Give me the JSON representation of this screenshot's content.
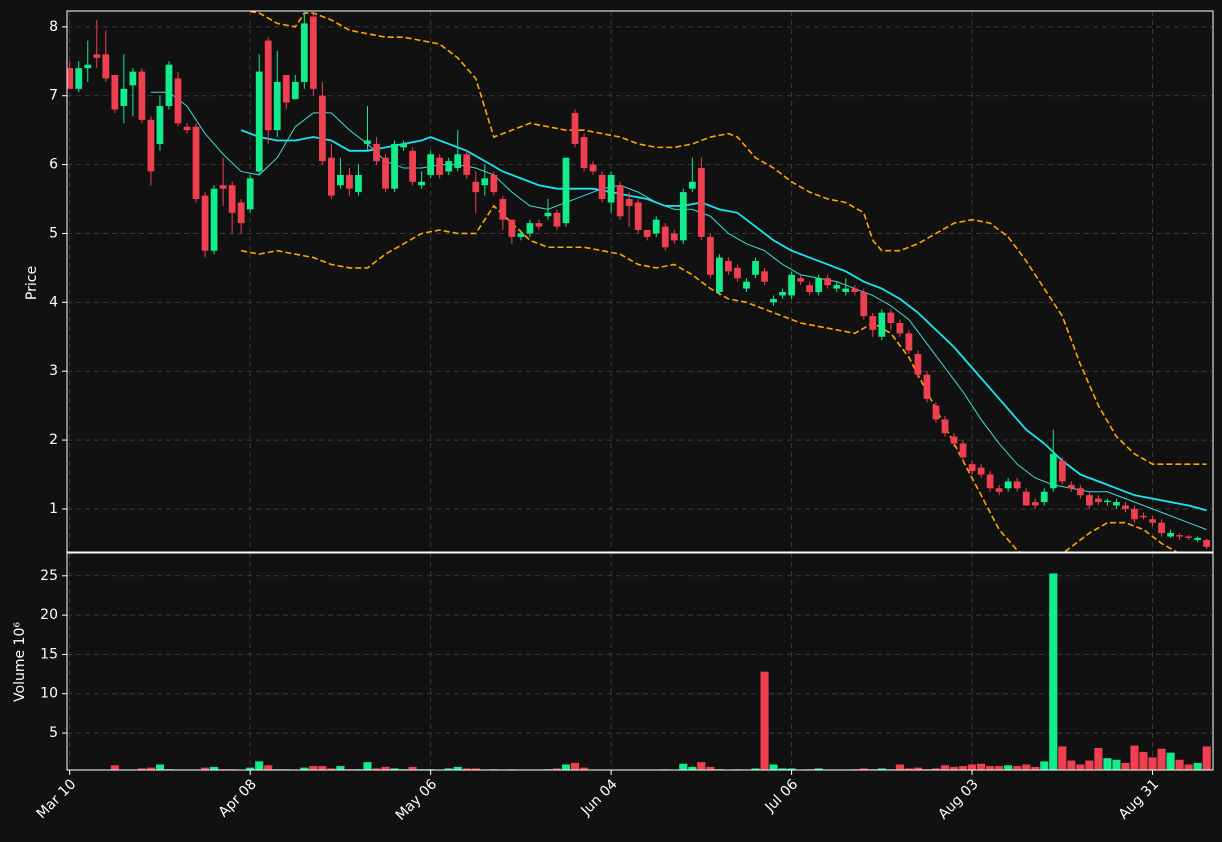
{
  "chart_data": {
    "type": "candlestick",
    "ylabel": "Price",
    "volume_label": "Volume  10⁶",
    "up_color": "#12ec8c",
    "down_color": "#ee4050",
    "grid": true,
    "xlim": [
      -0.3,
      126.7
    ],
    "xticks": [
      {
        "value": 0,
        "label": "Mar 10"
      },
      {
        "value": 20,
        "label": "Apr 08"
      },
      {
        "value": 40,
        "label": "May 06"
      },
      {
        "value": 60,
        "label": "Jun 04"
      },
      {
        "value": 80,
        "label": "Jul 06"
      },
      {
        "value": 100,
        "label": "Aug 03"
      },
      {
        "value": 120,
        "label": "Aug 31"
      }
    ],
    "ylim": [
      0.375,
      8.23
    ],
    "yticks": [
      1,
      2,
      3,
      4,
      5,
      6,
      7,
      8
    ],
    "volume_ylim": [
      0.3,
      27.9
    ],
    "volume_yticks": [
      5,
      10,
      15,
      20,
      25
    ],
    "x": [
      0,
      1,
      2,
      3,
      4,
      5,
      6,
      7,
      8,
      9,
      10,
      11,
      12,
      13,
      14,
      15,
      16,
      17,
      18,
      19,
      20,
      21,
      22,
      23,
      24,
      25,
      26,
      27,
      28,
      29,
      30,
      31,
      32,
      33,
      34,
      35,
      36,
      37,
      38,
      39,
      40,
      41,
      42,
      43,
      44,
      45,
      46,
      47,
      48,
      49,
      50,
      51,
      52,
      53,
      54,
      55,
      56,
      57,
      58,
      59,
      60,
      61,
      62,
      63,
      64,
      65,
      66,
      67,
      68,
      69,
      70,
      71,
      72,
      73,
      74,
      75,
      76,
      77,
      78,
      79,
      80,
      81,
      82,
      83,
      84,
      85,
      86,
      87,
      88,
      89,
      90,
      91,
      92,
      93,
      94,
      95,
      96,
      97,
      98,
      99,
      100,
      101,
      102,
      103,
      104,
      105,
      106,
      107,
      108,
      109,
      110,
      111,
      112,
      113,
      114,
      115,
      116,
      117,
      118,
      119,
      120,
      121,
      122,
      123,
      124,
      125,
      126
    ],
    "open": [
      7.4,
      7.1,
      7.4,
      7.6,
      7.6,
      7.3,
      6.85,
      7.15,
      7.35,
      6.65,
      6.3,
      6.85,
      7.25,
      6.55,
      6.55,
      5.55,
      4.75,
      5.7,
      5.7,
      5.45,
      5.35,
      5.9,
      7.8,
      6.5,
      7.3,
      6.95,
      7.2,
      8.15,
      7.0,
      6.1,
      5.7,
      5.85,
      5.6,
      6.3,
      6.3,
      6.1,
      5.65,
      6.25,
      6.2,
      5.7,
      5.85,
      6.1,
      5.9,
      5.95,
      6.15,
      5.75,
      5.7,
      5.85,
      5.5,
      5.2,
      4.95,
      5.0,
      5.15,
      5.25,
      5.3,
      5.15,
      6.75,
      6.4,
      6.0,
      5.85,
      5.45,
      5.7,
      5.5,
      5.45,
      5.05,
      5.0,
      5.1,
      5.0,
      4.9,
      5.65,
      5.95,
      4.95,
      4.15,
      4.6,
      4.5,
      4.2,
      4.4,
      4.45,
      4.0,
      4.1,
      4.1,
      4.35,
      4.25,
      4.15,
      4.35,
      4.2,
      4.15,
      4.2,
      4.15,
      3.8,
      3.5,
      3.85,
      3.7,
      3.55,
      3.25,
      2.95,
      2.5,
      2.3,
      2.05,
      1.95,
      1.65,
      1.6,
      1.5,
      1.3,
      1.3,
      1.4,
      1.25,
      1.1,
      1.1,
      1.3,
      1.7,
      1.35,
      1.3,
      1.2,
      1.15,
      1.1,
      1.05,
      1.05,
      1.0,
      0.9,
      0.85,
      0.8,
      0.6,
      0.62,
      0.6,
      0.55,
      0.55
    ],
    "high": [
      7.5,
      7.5,
      7.8,
      8.1,
      7.95,
      7.3,
      7.6,
      7.4,
      7.4,
      6.7,
      7.0,
      7.5,
      7.35,
      6.6,
      6.6,
      5.6,
      5.7,
      6.1,
      5.75,
      5.5,
      5.85,
      7.6,
      7.85,
      7.65,
      7.3,
      7.3,
      8.2,
      8.2,
      7.2,
      6.3,
      6.1,
      5.95,
      6.0,
      6.85,
      6.4,
      6.15,
      6.35,
      6.35,
      6.25,
      5.9,
      6.2,
      6.15,
      6.1,
      6.5,
      6.2,
      5.9,
      6.0,
      5.9,
      5.55,
      5.2,
      5.05,
      5.2,
      5.2,
      5.5,
      5.35,
      6.1,
      6.8,
      6.45,
      6.05,
      5.9,
      5.9,
      5.75,
      5.6,
      5.5,
      5.05,
      5.25,
      5.15,
      5.05,
      5.65,
      6.1,
      6.1,
      5.0,
      4.7,
      4.65,
      4.55,
      4.35,
      4.65,
      4.5,
      4.1,
      4.2,
      4.45,
      4.4,
      4.3,
      4.4,
      4.4,
      4.3,
      4.35,
      4.25,
      4.2,
      3.85,
      3.9,
      3.9,
      3.75,
      3.6,
      3.3,
      3.0,
      2.55,
      2.35,
      2.1,
      2.0,
      1.7,
      1.65,
      1.55,
      1.35,
      1.45,
      1.45,
      1.3,
      1.15,
      1.3,
      2.15,
      1.75,
      1.4,
      1.35,
      1.25,
      1.2,
      1.15,
      1.15,
      1.1,
      1.05,
      0.95,
      0.9,
      0.85,
      0.7,
      0.65,
      0.62,
      0.6,
      0.57
    ],
    "low": [
      7.1,
      7.05,
      7.2,
      7.4,
      7.2,
      6.75,
      6.6,
      6.7,
      6.6,
      5.7,
      6.2,
      6.8,
      6.55,
      6.45,
      5.45,
      4.65,
      4.7,
      5.4,
      5.0,
      5.0,
      5.3,
      5.85,
      6.3,
      6.4,
      6.8,
      6.95,
      7.1,
      7.0,
      6.0,
      5.5,
      5.65,
      5.55,
      5.55,
      6.2,
      6.0,
      5.6,
      5.6,
      6.2,
      5.7,
      5.65,
      5.8,
      5.8,
      5.85,
      5.9,
      5.8,
      5.3,
      5.55,
      5.55,
      5.05,
      4.85,
      4.9,
      4.95,
      5.05,
      5.2,
      5.05,
      5.1,
      6.25,
      5.9,
      5.85,
      5.45,
      5.3,
      5.2,
      5.1,
      5.0,
      4.9,
      4.95,
      4.75,
      4.85,
      4.85,
      5.6,
      4.9,
      4.35,
      4.1,
      4.4,
      4.3,
      4.15,
      4.35,
      4.25,
      3.95,
      4.05,
      4.05,
      4.25,
      4.1,
      4.1,
      4.2,
      4.15,
      4.1,
      4.1,
      3.75,
      3.5,
      3.45,
      3.6,
      3.5,
      3.25,
      2.9,
      2.55,
      2.25,
      2.05,
      1.9,
      1.7,
      1.5,
      1.45,
      1.25,
      1.2,
      1.25,
      1.25,
      1.05,
      1.0,
      1.05,
      1.25,
      1.35,
      1.25,
      1.15,
      1.0,
      1.05,
      1.05,
      1.0,
      0.95,
      0.8,
      0.85,
      0.75,
      0.6,
      0.58,
      0.55,
      0.55,
      0.52,
      0.42
    ],
    "close": [
      7.1,
      7.4,
      7.45,
      7.55,
      7.25,
      6.8,
      7.1,
      7.35,
      6.65,
      5.9,
      6.85,
      7.45,
      6.6,
      6.5,
      5.5,
      4.75,
      5.65,
      5.65,
      5.3,
      5.15,
      5.8,
      7.35,
      6.5,
      7.2,
      6.9,
      7.2,
      8.05,
      7.1,
      6.05,
      5.55,
      5.85,
      5.65,
      5.85,
      6.35,
      6.05,
      5.65,
      6.3,
      6.3,
      5.75,
      5.75,
      6.15,
      5.85,
      6.05,
      6.15,
      5.85,
      5.6,
      5.8,
      5.6,
      5.2,
      4.95,
      5.0,
      5.15,
      5.1,
      5.3,
      5.1,
      6.1,
      6.3,
      5.95,
      5.9,
      5.5,
      5.85,
      5.25,
      5.4,
      5.05,
      4.95,
      5.2,
      4.8,
      4.9,
      5.6,
      5.75,
      4.95,
      4.4,
      4.65,
      4.45,
      4.35,
      4.3,
      4.6,
      4.3,
      4.05,
      4.15,
      4.4,
      4.3,
      4.15,
      4.35,
      4.25,
      4.25,
      4.2,
      4.15,
      3.8,
      3.6,
      3.85,
      3.7,
      3.55,
      3.3,
      2.95,
      2.6,
      2.3,
      2.1,
      1.95,
      1.75,
      1.55,
      1.5,
      1.3,
      1.25,
      1.4,
      1.3,
      1.05,
      1.05,
      1.25,
      1.8,
      1.4,
      1.3,
      1.2,
      1.05,
      1.1,
      1.12,
      1.1,
      1.0,
      0.85,
      0.88,
      0.8,
      0.65,
      0.65,
      0.6,
      0.58,
      0.58,
      0.45
    ],
    "volume": [
      0.3,
      0.3,
      0.3,
      0.2,
      0.3,
      0.9,
      0.3,
      0.3,
      0.5,
      0.6,
      1.0,
      0.4,
      0.3,
      0.3,
      0.3,
      0.6,
      0.7,
      0.4,
      0.4,
      0.3,
      0.6,
      1.4,
      0.9,
      0.4,
      0.4,
      0.3,
      0.6,
      0.8,
      0.8,
      0.5,
      0.8,
      0.4,
      0.4,
      1.3,
      0.5,
      0.7,
      0.5,
      0.4,
      0.7,
      0.4,
      0.4,
      0.3,
      0.5,
      0.7,
      0.5,
      0.5,
      0.3,
      0.4,
      0.3,
      0.4,
      0.3,
      0.2,
      0.3,
      0.4,
      0.5,
      1.0,
      1.2,
      0.6,
      0.3,
      0.2,
      0.2,
      0.2,
      0.2,
      0.2,
      0.2,
      0.2,
      0.4,
      0.3,
      1.1,
      0.7,
      1.3,
      0.7,
      0.4,
      0.2,
      0.4,
      0.2,
      0.5,
      12.8,
      1.0,
      0.5,
      0.5,
      0.3,
      0.4,
      0.5,
      0.2,
      0.2,
      0.3,
      0.4,
      0.5,
      0.4,
      0.5,
      0.4,
      1.0,
      0.5,
      0.6,
      0.4,
      0.5,
      0.9,
      0.7,
      0.8,
      1.0,
      1.1,
      0.8,
      0.8,
      0.9,
      0.8,
      1.0,
      0.7,
      1.4,
      25.3,
      3.3,
      1.5,
      1.0,
      1.5,
      3.1,
      1.8,
      1.6,
      1.2,
      3.4,
      2.6,
      1.9,
      3.0,
      2.5,
      1.6,
      1.0,
      1.2,
      3.3
    ],
    "overlays": [
      {
        "color": "#3fdcd4",
        "linewidth": 1,
        "dashed": false,
        "x": [
          9,
          11,
          13,
          15,
          17,
          19,
          21,
          23,
          25,
          27,
          29,
          31,
          33,
          35,
          37,
          39,
          41,
          43,
          45,
          47,
          49,
          51,
          53,
          55,
          57,
          59,
          61,
          63,
          65,
          67,
          69,
          71,
          73,
          75,
          77,
          79,
          81,
          83,
          85,
          87,
          89,
          91,
          93,
          95,
          97,
          99,
          101,
          103,
          105,
          107,
          109,
          111,
          113,
          115,
          117,
          119,
          121,
          123,
          125,
          126
        ],
        "values": [
          7.05,
          7.05,
          6.85,
          6.45,
          6.15,
          5.9,
          5.85,
          6.1,
          6.55,
          6.75,
          6.75,
          6.5,
          6.3,
          6.05,
          5.95,
          5.95,
          6.0,
          6.0,
          5.95,
          5.85,
          5.6,
          5.4,
          5.35,
          5.45,
          5.55,
          5.65,
          5.7,
          5.6,
          5.45,
          5.35,
          5.35,
          5.25,
          5.0,
          4.85,
          4.75,
          4.55,
          4.4,
          4.35,
          4.3,
          4.2,
          4.1,
          3.95,
          3.75,
          3.4,
          3.05,
          2.7,
          2.3,
          1.95,
          1.65,
          1.45,
          1.35,
          1.3,
          1.25,
          1.25,
          1.15,
          1.05,
          0.95,
          0.85,
          0.75,
          0.7
        ]
      },
      {
        "color": "#18e6f5",
        "linewidth": 1.8,
        "dashed": false,
        "x": [
          19,
          21,
          23,
          25,
          27,
          29,
          31,
          33,
          35,
          37,
          39,
          40,
          42,
          44,
          46,
          48,
          50,
          52,
          54,
          56,
          58,
          60,
          62,
          64,
          66,
          68,
          70,
          72,
          74,
          76,
          78,
          80,
          82,
          84,
          86,
          88,
          90,
          92,
          94,
          96,
          98,
          100,
          102,
          104,
          106,
          108,
          110,
          112,
          114,
          116,
          118,
          120,
          122,
          124,
          126
        ],
        "values": [
          6.5,
          6.4,
          6.35,
          6.35,
          6.4,
          6.35,
          6.2,
          6.2,
          6.25,
          6.3,
          6.35,
          6.4,
          6.3,
          6.2,
          6.05,
          5.9,
          5.8,
          5.7,
          5.65,
          5.65,
          5.65,
          5.6,
          5.55,
          5.5,
          5.4,
          5.4,
          5.45,
          5.35,
          5.3,
          5.1,
          4.9,
          4.75,
          4.65,
          4.55,
          4.45,
          4.3,
          4.2,
          4.05,
          3.85,
          3.6,
          3.35,
          3.05,
          2.75,
          2.45,
          2.15,
          1.95,
          1.7,
          1.5,
          1.4,
          1.3,
          1.2,
          1.15,
          1.1,
          1.05,
          0.98
        ]
      },
      {
        "color": "#ffa500",
        "linewidth": 1.6,
        "dashed": true,
        "x": [
          19,
          21,
          23,
          25,
          26,
          27,
          29,
          31,
          33,
          35,
          37,
          39,
          41,
          43,
          45,
          47,
          49,
          51,
          53,
          55,
          57,
          59,
          61,
          63,
          65,
          67,
          69,
          71,
          73,
          74,
          76,
          78,
          80,
          82,
          84,
          86,
          88,
          89,
          90,
          92,
          94,
          96,
          98,
          100,
          102,
          104,
          106,
          108,
          110,
          112,
          114,
          116,
          118,
          120,
          122,
          124,
          126
        ],
        "values": [
          8.25,
          8.2,
          8.05,
          8.0,
          8.2,
          8.2,
          8.1,
          7.95,
          7.9,
          7.85,
          7.85,
          7.8,
          7.75,
          7.55,
          7.25,
          6.4,
          6.5,
          6.6,
          6.55,
          6.5,
          6.5,
          6.45,
          6.4,
          6.3,
          6.25,
          6.25,
          6.3,
          6.4,
          6.45,
          6.4,
          6.1,
          5.95,
          5.75,
          5.6,
          5.5,
          5.45,
          5.3,
          4.9,
          4.75,
          4.75,
          4.85,
          5.0,
          5.15,
          5.2,
          5.15,
          4.95,
          4.6,
          4.2,
          3.8,
          3.1,
          2.5,
          2.05,
          1.8,
          1.65,
          1.65,
          1.65,
          1.65
        ]
      },
      {
        "color": "#ffa500",
        "linewidth": 1.6,
        "dashed": true,
        "x": [
          19,
          21,
          23,
          25,
          27,
          29,
          31,
          33,
          35,
          37,
          39,
          41,
          43,
          45,
          47,
          49,
          51,
          53,
          55,
          57,
          59,
          61,
          63,
          65,
          67,
          69,
          71,
          73,
          75,
          77,
          79,
          81,
          83,
          85,
          87,
          89,
          91,
          93,
          95,
          97,
          99,
          101,
          103,
          105,
          107,
          109,
          111,
          113,
          115,
          117,
          119,
          121,
          123,
          125,
          126
        ],
        "values": [
          4.75,
          4.7,
          4.75,
          4.7,
          4.65,
          4.55,
          4.5,
          4.5,
          4.7,
          4.85,
          5.0,
          5.05,
          5.0,
          5.0,
          5.4,
          5.15,
          4.9,
          4.8,
          4.8,
          4.8,
          4.75,
          4.7,
          4.55,
          4.5,
          4.55,
          4.4,
          4.2,
          4.05,
          4.0,
          3.9,
          3.8,
          3.7,
          3.65,
          3.6,
          3.55,
          3.7,
          3.55,
          3.2,
          2.7,
          2.2,
          1.7,
          1.2,
          0.7,
          0.4,
          0.2,
          0.25,
          0.45,
          0.65,
          0.8,
          0.8,
          0.7,
          0.5,
          0.35,
          0.2,
          0.15
        ]
      }
    ]
  }
}
